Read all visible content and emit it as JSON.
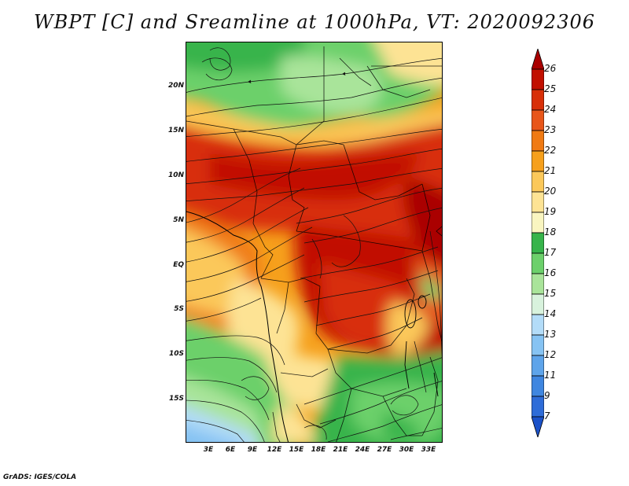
{
  "title": "WBPT [C] and Sreamline at 1000hPa, VT: 2020092306",
  "credit": "GrADS: IGES/COLA",
  "lat_axis": [
    "20N",
    "15N",
    "10N",
    "5N",
    "EQ",
    "5S",
    "10S",
    "15S"
  ],
  "lon_axis": [
    "3E",
    "6E",
    "9E",
    "12E",
    "15E",
    "18E",
    "21E",
    "24E",
    "27E",
    "30E",
    "33E"
  ],
  "colorbar": {
    "levels": [
      "26",
      "25",
      "24",
      "23",
      "22",
      "21",
      "20",
      "19",
      "18",
      "17",
      "16",
      "15",
      "14",
      "13",
      "12",
      "11",
      "9",
      "7"
    ],
    "colors": [
      "#aa0000",
      "#c10f00",
      "#d82f08",
      "#e8561a",
      "#f07a13",
      "#f6a01c",
      "#fbc85a",
      "#fde394",
      "#f9f5c0",
      "#37b44b",
      "#6cd06b",
      "#a9e49a",
      "#d8f2dd",
      "#b3dcf8",
      "#86c3f3",
      "#5ea4ea",
      "#3f86e0",
      "#2e6cd8",
      "#1b52c9"
    ]
  },
  "map": {
    "region": "Central Africa",
    "lon_range": [
      0,
      35
    ],
    "lat_range": [
      -20,
      24
    ],
    "field": "wet-bulb potential temperature",
    "units": "C",
    "level": "1000hPa"
  }
}
